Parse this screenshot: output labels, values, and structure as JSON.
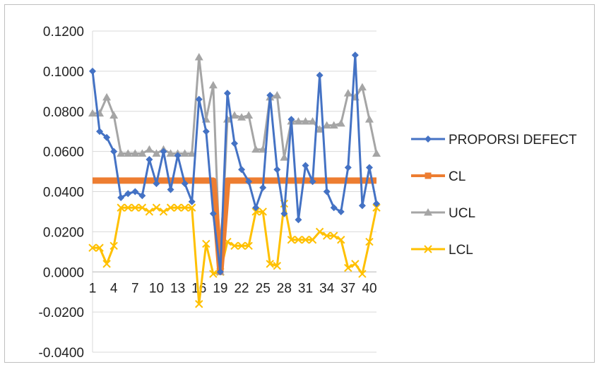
{
  "chart_data": {
    "type": "line",
    "title": "",
    "xlabel": "",
    "ylabel": "",
    "ylim": [
      -0.04,
      0.12
    ],
    "ytick_step": 0.02,
    "ytick_decimals": 4,
    "x": [
      1,
      2,
      3,
      4,
      5,
      6,
      7,
      8,
      9,
      10,
      11,
      12,
      13,
      14,
      15,
      16,
      17,
      18,
      19,
      20,
      21,
      22,
      23,
      24,
      25,
      26,
      27,
      28,
      29,
      30,
      31,
      32,
      33,
      34,
      35,
      36,
      37,
      38,
      39,
      40,
      41
    ],
    "x_tick_labels": [
      "1",
      "",
      "",
      "4",
      "",
      "",
      "7",
      "",
      "",
      "10",
      "",
      "",
      "13",
      "",
      "",
      "16",
      "",
      "",
      "19",
      "",
      "",
      "22",
      "",
      "",
      "25",
      "",
      "",
      "28",
      "",
      "",
      "31",
      "",
      "",
      "34",
      "",
      "",
      "37",
      "",
      "",
      "40",
      ""
    ],
    "grid": "horizontal",
    "legend_position": "right",
    "series": [
      {
        "name": "PROPORSI DEFECT",
        "color": "#4472C4",
        "marker": "diamond",
        "values": [
          0.1,
          0.07,
          0.067,
          0.06,
          0.037,
          0.039,
          0.04,
          0.038,
          0.056,
          0.044,
          0.06,
          0.041,
          0.058,
          0.044,
          0.035,
          0.086,
          0.07,
          0.029,
          0.0,
          0.089,
          0.064,
          0.051,
          0.045,
          0.032,
          0.042,
          0.088,
          0.051,
          0.029,
          0.076,
          0.026,
          0.053,
          0.045,
          0.098,
          0.04,
          0.032,
          0.03,
          0.052,
          0.108,
          0.033,
          0.052,
          0.034
        ]
      },
      {
        "name": "CL",
        "color": "#ED7D31",
        "marker": "square",
        "values": [
          0.0455,
          0.0455,
          0.0455,
          0.0455,
          0.0455,
          0.0455,
          0.0455,
          0.0455,
          0.0455,
          0.0455,
          0.0455,
          0.0455,
          0.0455,
          0.0455,
          0.0455,
          0.0455,
          0.0455,
          0.0455,
          0.0,
          0.0455,
          0.0455,
          0.0455,
          0.0455,
          0.0455,
          0.0455,
          0.0455,
          0.0455,
          0.0455,
          0.0455,
          0.0455,
          0.0455,
          0.0455,
          0.0455,
          0.0455,
          0.0455,
          0.0455,
          0.0455,
          0.0455,
          0.0455,
          0.0455,
          0.0455
        ]
      },
      {
        "name": "UCL",
        "color": "#A5A5A5",
        "marker": "triangle",
        "values": [
          0.079,
          0.079,
          0.087,
          0.078,
          0.059,
          0.059,
          0.059,
          0.059,
          0.061,
          0.059,
          0.061,
          0.059,
          0.059,
          0.059,
          0.059,
          0.107,
          0.076,
          0.093,
          0.0,
          0.076,
          0.078,
          0.077,
          0.078,
          0.061,
          0.061,
          0.087,
          0.088,
          0.057,
          0.075,
          0.075,
          0.075,
          0.075,
          0.071,
          0.073,
          0.073,
          0.074,
          0.089,
          0.087,
          0.092,
          0.076,
          0.059
        ]
      },
      {
        "name": "LCL",
        "color": "#FFC000",
        "marker": "x",
        "values": [
          0.012,
          0.012,
          0.004,
          0.013,
          0.032,
          0.032,
          0.032,
          0.032,
          0.03,
          0.032,
          0.03,
          0.032,
          0.032,
          0.032,
          0.032,
          -0.016,
          0.014,
          -0.001,
          0.0,
          0.015,
          0.013,
          0.013,
          0.013,
          0.03,
          0.03,
          0.004,
          0.003,
          0.034,
          0.016,
          0.016,
          0.016,
          0.016,
          0.02,
          0.018,
          0.018,
          0.016,
          0.002,
          0.004,
          -0.001,
          0.015,
          0.032
        ]
      }
    ]
  }
}
